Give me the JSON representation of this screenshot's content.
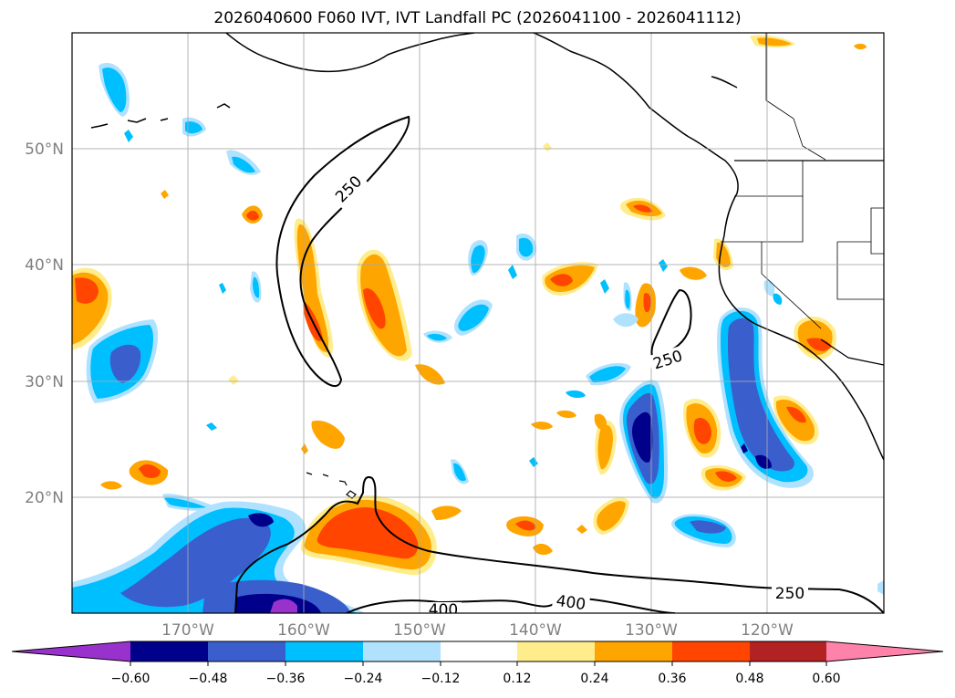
{
  "title": "2026040600 F060 IVT, IVT Landfall PC (2026041100 - 2026041112)",
  "lat_labels": [
    "50°N",
    "40°N",
    "30°N",
    "20°N"
  ],
  "lon_labels": [
    "170°W",
    "160°W",
    "150°W",
    "140°W",
    "130°W",
    "120°W"
  ],
  "contour_labels": [
    "250",
    "250",
    "250",
    "400",
    "400"
  ],
  "colorbar": {
    "ticks": [
      "−0.60",
      "−0.48",
      "−0.36",
      "−0.24",
      "−0.12",
      "0.12",
      "0.24",
      "0.36",
      "0.48",
      "0.60"
    ],
    "colors": [
      "#9932cc",
      "#00008b",
      "#3a5fcd",
      "#00bfff",
      "#b0e2ff",
      "#ffffff",
      "#ffec8b",
      "#ffa500",
      "#ff4500",
      "#b22222",
      "#ff82ab"
    ]
  }
}
